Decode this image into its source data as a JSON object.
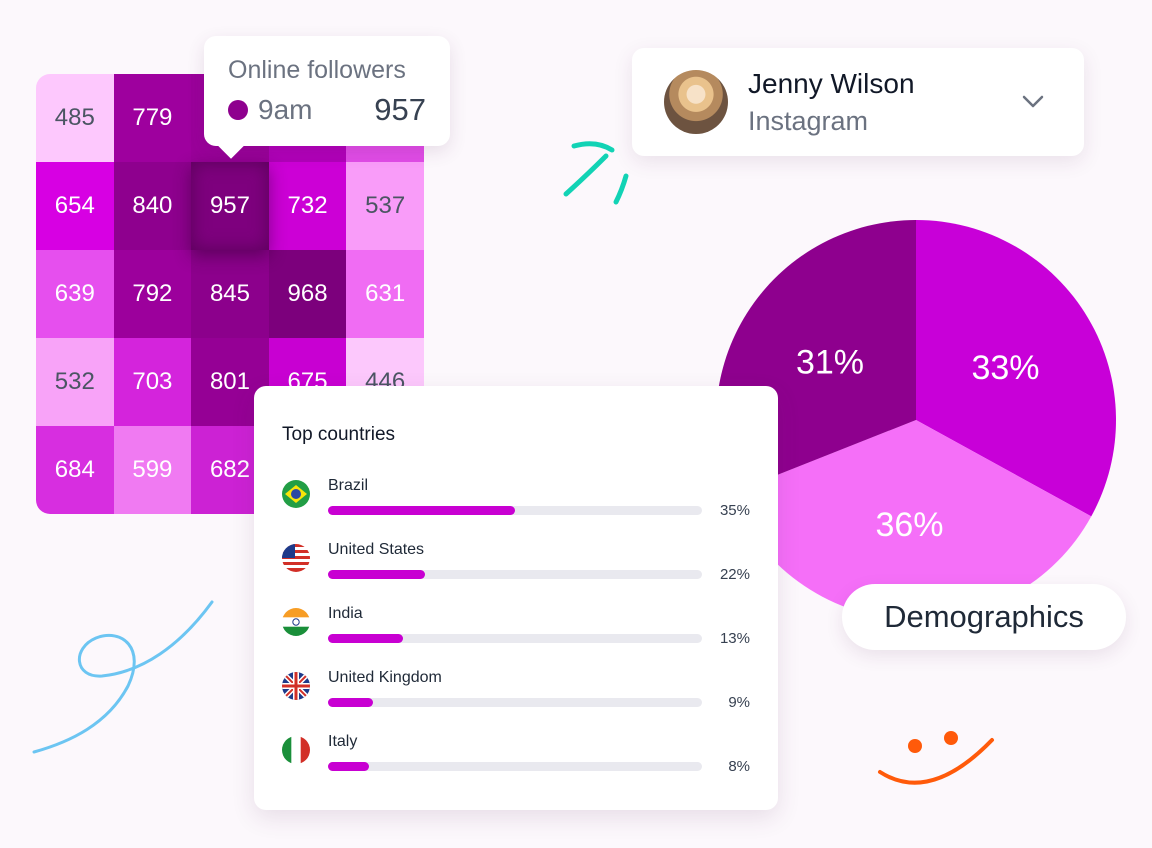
{
  "heatmap": {
    "cells": [
      {
        "v": "485",
        "c": "#fdc8fd",
        "t": "dark"
      },
      {
        "v": "779",
        "c": "#9e009e",
        "t": "light"
      },
      {
        "v": "",
        "c": "#9a009a",
        "t": "light"
      },
      {
        "v": "",
        "c": "#b000b8",
        "t": "light"
      },
      {
        "v": "",
        "c": "#e04ce6",
        "t": "light"
      },
      {
        "v": "654",
        "c": "#d700e3",
        "t": "light"
      },
      {
        "v": "840",
        "c": "#8e008e",
        "t": "light"
      },
      {
        "v": "957",
        "c": "#7e007e",
        "t": "light",
        "focus": true
      },
      {
        "v": "732",
        "c": "#cc00d6",
        "t": "light"
      },
      {
        "v": "537",
        "c": "#f99cf9",
        "t": "dark"
      },
      {
        "v": "639",
        "c": "#e64fee",
        "t": "light"
      },
      {
        "v": "792",
        "c": "#9c009c",
        "t": "light"
      },
      {
        "v": "845",
        "c": "#8c008c",
        "t": "light"
      },
      {
        "v": "968",
        "c": "#7c007c",
        "t": "light"
      },
      {
        "v": "631",
        "c": "#f06cf3",
        "t": "light"
      },
      {
        "v": "532",
        "c": "#f8a3f8",
        "t": "dark"
      },
      {
        "v": "703",
        "c": "#d424dc",
        "t": "light"
      },
      {
        "v": "801",
        "c": "#950095",
        "t": "light"
      },
      {
        "v": "675",
        "c": "#c800d2",
        "t": "light"
      },
      {
        "v": "446",
        "c": "#fcc8fc",
        "t": "dark"
      },
      {
        "v": "684",
        "c": "#d72ee0",
        "t": "light"
      },
      {
        "v": "599",
        "c": "#f07af2",
        "t": "light"
      },
      {
        "v": "682",
        "c": "#cc22d4",
        "t": "light"
      },
      {
        "v": "",
        "c": "#d000da",
        "t": "light"
      },
      {
        "v": "",
        "c": "#f4a0f6",
        "t": "light"
      }
    ]
  },
  "tooltip": {
    "title": "Online followers",
    "time": "9am",
    "value": "957",
    "dot_color": "#8e008e"
  },
  "profile": {
    "name": "Jenny Wilson",
    "network": "Instagram"
  },
  "pie": {
    "slices": [
      {
        "label": "33%",
        "value": 33,
        "color": "#c800d8"
      },
      {
        "label": "36%",
        "value": 36,
        "color": "#f56ff8"
      },
      {
        "label": "31%",
        "value": 31,
        "color": "#8e008e"
      }
    ]
  },
  "demographics_label": "Demographics",
  "countries": {
    "title": "Top countries",
    "items": [
      {
        "name": "Brazil",
        "pct": "35%",
        "fraction": 0.5,
        "flag": "brazil-flag-icon"
      },
      {
        "name": "United States",
        "pct": "22%",
        "fraction": 0.26,
        "flag": "usa-flag-icon"
      },
      {
        "name": "India",
        "pct": "13%",
        "fraction": 0.2,
        "flag": "india-flag-icon"
      },
      {
        "name": "United Kingdom",
        "pct": "9%",
        "fraction": 0.12,
        "flag": "uk-flag-icon"
      },
      {
        "name": "Italy",
        "pct": "8%",
        "fraction": 0.11,
        "flag": "italy-flag-icon"
      }
    ]
  }
}
